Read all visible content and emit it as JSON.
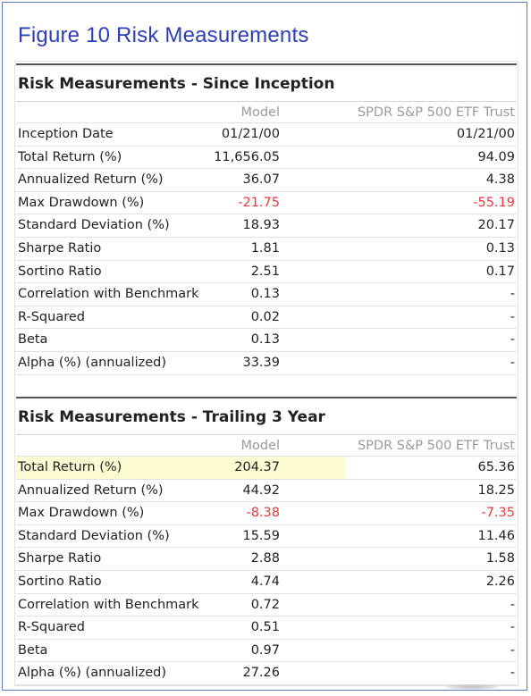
{
  "figure_title": "Figure 10  Risk Measurements",
  "columns": {
    "model": "Model",
    "benchmark": "SPDR S&P 500 ETF Trust"
  },
  "colors": {
    "title": "#2e3fb5",
    "negative": "#e53b3b",
    "highlight": "#fdfbd2"
  },
  "since_inception": {
    "title": "Risk Measurements - Since Inception",
    "rows": [
      {
        "label": "Inception Date",
        "model": "01/21/00",
        "benchmark": "01/21/00"
      },
      {
        "label": "Total Return (%)",
        "model": "11,656.05",
        "benchmark": "94.09"
      },
      {
        "label": "Annualized Return (%)",
        "model": "36.07",
        "benchmark": "4.38"
      },
      {
        "label": "Max Drawdown (%)",
        "model": "-21.75",
        "benchmark": "-55.19"
      },
      {
        "label": "Standard Deviation (%)",
        "model": "18.93",
        "benchmark": "20.17"
      },
      {
        "label": "Sharpe Ratio",
        "model": "1.81",
        "benchmark": "0.13"
      },
      {
        "label": "Sortino Ratio",
        "model": "2.51",
        "benchmark": "0.17"
      },
      {
        "label": "Correlation with Benchmark",
        "model": "0.13",
        "benchmark": "-"
      },
      {
        "label": "R-Squared",
        "model": "0.02",
        "benchmark": "-"
      },
      {
        "label": "Beta",
        "model": "0.13",
        "benchmark": "-"
      },
      {
        "label": "Alpha (%) (annualized)",
        "model": "33.39",
        "benchmark": "-"
      }
    ]
  },
  "trailing_3_year": {
    "title": "Risk Measurements - Trailing 3 Year",
    "rows": [
      {
        "label": "Total Return (%)",
        "model": "204.37",
        "benchmark": "65.36"
      },
      {
        "label": "Annualized Return (%)",
        "model": "44.92",
        "benchmark": "18.25"
      },
      {
        "label": "Max Drawdown (%)",
        "model": "-8.38",
        "benchmark": "-7.35"
      },
      {
        "label": "Standard Deviation (%)",
        "model": "15.59",
        "benchmark": "11.46"
      },
      {
        "label": "Sharpe Ratio",
        "model": "2.88",
        "benchmark": "1.58"
      },
      {
        "label": "Sortino Ratio",
        "model": "4.74",
        "benchmark": "2.26"
      },
      {
        "label": "Correlation with Benchmark",
        "model": "0.72",
        "benchmark": "-"
      },
      {
        "label": "R-Squared",
        "model": "0.51",
        "benchmark": "-"
      },
      {
        "label": "Beta",
        "model": "0.97",
        "benchmark": "-"
      },
      {
        "label": "Alpha (%) (annualized)",
        "model": "27.26",
        "benchmark": "-"
      }
    ]
  }
}
